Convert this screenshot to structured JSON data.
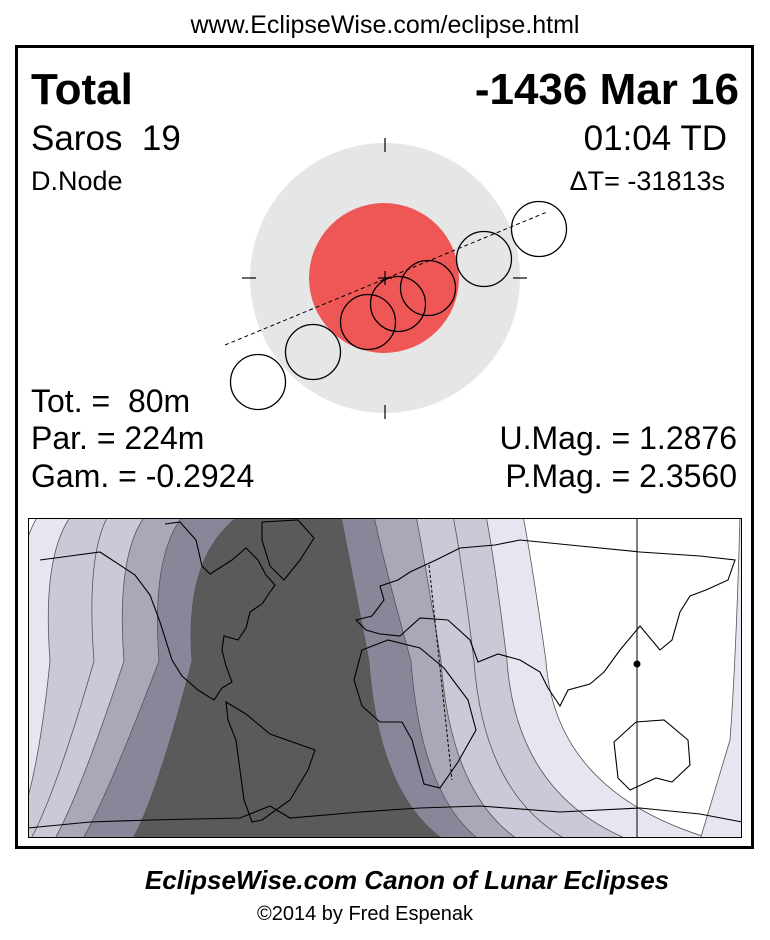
{
  "header": {
    "url": "www.EclipseWise.com/eclipse.html"
  },
  "eclipse": {
    "type": "Total",
    "date": "-1436 Mar 16",
    "saros": "Saros  19",
    "time": "01:04 TD",
    "node": "D.Node",
    "delta_t": "ΔT= -31813s",
    "totality": "Tot. =  80m",
    "partial": "Par. = 224m",
    "gamma": "Gam. = -0.2924",
    "umbral_mag": "U.Mag. = 1.2876",
    "penumbral_mag": "P.Mag. = 2.3560"
  },
  "colors": {
    "penumbra": "#e6e6e6",
    "umbra": "#ef5757",
    "map_bands": [
      "#e6e6f0",
      "#c9c9d8",
      "#a8a8b8",
      "#878799",
      "#5a5a5a"
    ]
  },
  "footer": {
    "title": "EclipseWise.com Canon of Lunar Eclipses",
    "copyright": "©2014 by Fred Espenak"
  }
}
